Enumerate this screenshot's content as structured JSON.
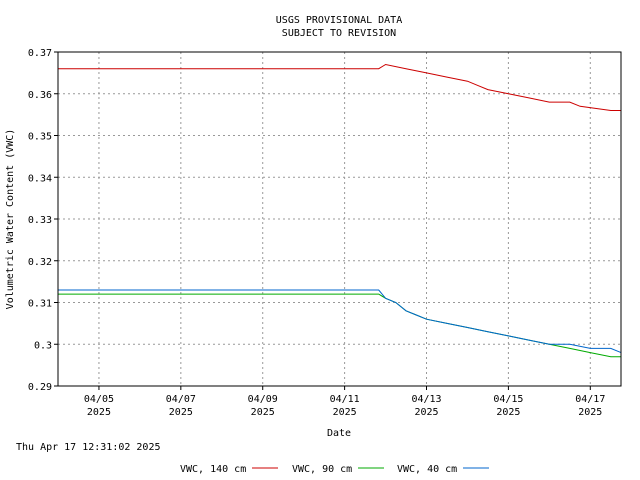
{
  "header": {
    "line1": "USGS PROVISIONAL DATA",
    "line2": "SUBJECT TO REVISION"
  },
  "footer": {
    "timestamp": "Thu Apr 17 12:31:02 2025"
  },
  "chart_data": {
    "type": "line",
    "xlabel": "Date",
    "ylabel": "Volumetric Water Content (VWC)",
    "xlim": [
      "2025-04-04T00:00",
      "2025-04-17T18:00"
    ],
    "ylim": [
      0.29,
      0.37
    ],
    "yticks": [
      {
        "value": 0.29,
        "label": "0.29"
      },
      {
        "value": 0.3,
        "label": "0.3"
      },
      {
        "value": 0.31,
        "label": "0.31"
      },
      {
        "value": 0.32,
        "label": "0.32"
      },
      {
        "value": 0.33,
        "label": "0.33"
      },
      {
        "value": 0.34,
        "label": "0.34"
      },
      {
        "value": 0.35,
        "label": "0.35"
      },
      {
        "value": 0.36,
        "label": "0.36"
      },
      {
        "value": 0.37,
        "label": "0.37"
      }
    ],
    "xticks": [
      {
        "value": "2025-04-05T00:00",
        "label": "04/05",
        "label2": "2025"
      },
      {
        "value": "2025-04-07T00:00",
        "label": "04/07",
        "label2": "2025"
      },
      {
        "value": "2025-04-09T00:00",
        "label": "04/09",
        "label2": "2025"
      },
      {
        "value": "2025-04-11T00:00",
        "label": "04/11",
        "label2": "2025"
      },
      {
        "value": "2025-04-13T00:00",
        "label": "04/13",
        "label2": "2025"
      },
      {
        "value": "2025-04-15T00:00",
        "label": "04/15",
        "label2": "2025"
      },
      {
        "value": "2025-04-17T00:00",
        "label": "04/17",
        "label2": "2025"
      }
    ],
    "grid": true,
    "legend_position": "bottom",
    "series": [
      {
        "name": "VWC, 140 cm",
        "color": "#cc0000",
        "points": [
          [
            "2025-04-04T00:00",
            0.366
          ],
          [
            "2025-04-11T20:00",
            0.366
          ],
          [
            "2025-04-12T00:00",
            0.367
          ],
          [
            "2025-04-12T12:00",
            0.366
          ],
          [
            "2025-04-13T00:00",
            0.365
          ],
          [
            "2025-04-13T12:00",
            0.364
          ],
          [
            "2025-04-14T00:00",
            0.363
          ],
          [
            "2025-04-14T06:00",
            0.362
          ],
          [
            "2025-04-14T12:00",
            0.361
          ],
          [
            "2025-04-15T00:00",
            0.36
          ],
          [
            "2025-04-15T12:00",
            0.359
          ],
          [
            "2025-04-16T00:00",
            0.358
          ],
          [
            "2025-04-16T12:00",
            0.358
          ],
          [
            "2025-04-16T18:00",
            0.357
          ],
          [
            "2025-04-17T12:00",
            0.356
          ],
          [
            "2025-04-17T18:00",
            0.356
          ]
        ]
      },
      {
        "name": "VWC, 90 cm",
        "color": "#00aa00",
        "points": [
          [
            "2025-04-04T00:00",
            0.312
          ],
          [
            "2025-04-11T20:00",
            0.312
          ],
          [
            "2025-04-12T00:00",
            0.311
          ],
          [
            "2025-04-12T06:00",
            0.31
          ],
          [
            "2025-04-12T12:00",
            0.308
          ],
          [
            "2025-04-12T18:00",
            0.307
          ],
          [
            "2025-04-13T00:00",
            0.306
          ],
          [
            "2025-04-13T12:00",
            0.305
          ],
          [
            "2025-04-14T00:00",
            0.304
          ],
          [
            "2025-04-14T12:00",
            0.303
          ],
          [
            "2025-04-15T00:00",
            0.302
          ],
          [
            "2025-04-15T12:00",
            0.301
          ],
          [
            "2025-04-16T00:00",
            0.3
          ],
          [
            "2025-04-16T12:00",
            0.299
          ],
          [
            "2025-04-17T00:00",
            0.298
          ],
          [
            "2025-04-17T12:00",
            0.297
          ],
          [
            "2025-04-17T18:00",
            0.297
          ]
        ]
      },
      {
        "name": "VWC, 40 cm",
        "color": "#0066cc",
        "points": [
          [
            "2025-04-04T00:00",
            0.313
          ],
          [
            "2025-04-11T20:00",
            0.313
          ],
          [
            "2025-04-12T00:00",
            0.311
          ],
          [
            "2025-04-12T06:00",
            0.31
          ],
          [
            "2025-04-12T12:00",
            0.308
          ],
          [
            "2025-04-12T18:00",
            0.307
          ],
          [
            "2025-04-13T00:00",
            0.306
          ],
          [
            "2025-04-13T12:00",
            0.305
          ],
          [
            "2025-04-14T00:00",
            0.304
          ],
          [
            "2025-04-14T12:00",
            0.303
          ],
          [
            "2025-04-15T00:00",
            0.302
          ],
          [
            "2025-04-15T12:00",
            0.301
          ],
          [
            "2025-04-16T00:00",
            0.3
          ],
          [
            "2025-04-16T12:00",
            0.3
          ],
          [
            "2025-04-17T00:00",
            0.299
          ],
          [
            "2025-04-17T12:00",
            0.299
          ],
          [
            "2025-04-17T18:00",
            0.298
          ]
        ]
      }
    ]
  }
}
